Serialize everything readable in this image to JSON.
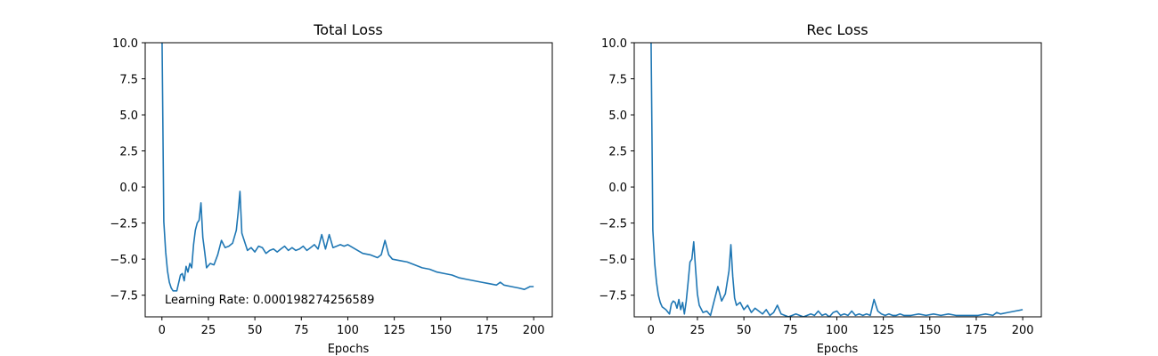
{
  "chart_data": [
    {
      "type": "line",
      "title": "Total Loss",
      "xlabel": "Epochs",
      "ylabel": "",
      "xlim": [
        -9,
        210
      ],
      "ylim": [
        -9,
        10
      ],
      "xticks": [
        "0",
        "25",
        "50",
        "75",
        "100",
        "125",
        "150",
        "175",
        "200"
      ],
      "yticks": [
        "-7.5",
        "-5.0",
        "-2.5",
        "0.0",
        "2.5",
        "5.0",
        "7.5",
        "10.0"
      ],
      "grid": false,
      "line_color": "#1f77b4",
      "annotation": "Learning Rate: 0.000198274256589",
      "series": [
        {
          "x": [
            0,
            1,
            2,
            3,
            4,
            5,
            6,
            8,
            10,
            11,
            12,
            13,
            14,
            15,
            16,
            17,
            18,
            19,
            20,
            21,
            22,
            23,
            24,
            26,
            28,
            30,
            32,
            34,
            36,
            38,
            40,
            41,
            42,
            43,
            44,
            46,
            48,
            50,
            52,
            54,
            56,
            58,
            60,
            62,
            64,
            66,
            68,
            70,
            72,
            74,
            76,
            78,
            80,
            82,
            84,
            86,
            88,
            90,
            92,
            94,
            96,
            98,
            100,
            104,
            108,
            112,
            116,
            118,
            120,
            122,
            124,
            128,
            132,
            136,
            140,
            144,
            148,
            152,
            156,
            160,
            164,
            168,
            172,
            176,
            180,
            182,
            184,
            188,
            192,
            195,
            198,
            200
          ],
          "y": [
            11,
            -2.4,
            -4.5,
            -5.8,
            -6.6,
            -7.0,
            -7.2,
            -7.2,
            -6.1,
            -6.0,
            -6.5,
            -5.5,
            -5.9,
            -5.3,
            -5.6,
            -4.0,
            -3.0,
            -2.5,
            -2.3,
            -1.1,
            -3.5,
            -4.5,
            -5.6,
            -5.3,
            -5.4,
            -4.7,
            -3.7,
            -4.2,
            -4.1,
            -3.9,
            -3.0,
            -1.8,
            -0.3,
            -3.2,
            -3.6,
            -4.4,
            -4.2,
            -4.5,
            -4.1,
            -4.2,
            -4.6,
            -4.4,
            -4.3,
            -4.5,
            -4.3,
            -4.1,
            -4.4,
            -4.2,
            -4.4,
            -4.3,
            -4.1,
            -4.4,
            -4.2,
            -4.0,
            -4.3,
            -3.3,
            -4.3,
            -3.3,
            -4.2,
            -4.1,
            -4.0,
            -4.1,
            -4.0,
            -4.3,
            -4.6,
            -4.7,
            -4.9,
            -4.7,
            -3.7,
            -4.7,
            -5.0,
            -5.1,
            -5.2,
            -5.4,
            -5.6,
            -5.7,
            -5.9,
            -6.0,
            -6.1,
            -6.3,
            -6.4,
            -6.5,
            -6.6,
            -6.7,
            -6.8,
            -6.6,
            -6.8,
            -6.9,
            -7.0,
            -7.1,
            -6.9,
            -6.9
          ]
        }
      ]
    },
    {
      "type": "line",
      "title": "Rec Loss",
      "xlabel": "Epochs",
      "ylabel": "",
      "xlim": [
        -9,
        210
      ],
      "ylim": [
        -9,
        10
      ],
      "xticks": [
        "0",
        "25",
        "50",
        "75",
        "100",
        "125",
        "150",
        "175",
        "200"
      ],
      "yticks": [
        "-7.5",
        "-5.0",
        "-2.5",
        "0.0",
        "2.5",
        "5.0",
        "7.5",
        "10.0"
      ],
      "grid": false,
      "line_color": "#1f77b4",
      "series": [
        {
          "x": [
            0,
            1,
            2,
            3,
            4,
            5,
            6,
            8,
            10,
            11,
            12,
            13,
            14,
            15,
            16,
            17,
            18,
            19,
            20,
            21,
            22,
            23,
            24,
            25,
            26,
            28,
            30,
            32,
            34,
            36,
            38,
            40,
            42,
            43,
            44,
            45,
            46,
            48,
            50,
            52,
            54,
            56,
            58,
            60,
            62,
            64,
            66,
            68,
            70,
            72,
            74,
            76,
            78,
            80,
            82,
            84,
            86,
            88,
            90,
            92,
            94,
            96,
            98,
            100,
            102,
            104,
            106,
            108,
            110,
            112,
            114,
            116,
            118,
            120,
            122,
            124,
            126,
            128,
            130,
            132,
            134,
            136,
            138,
            140,
            144,
            148,
            152,
            156,
            160,
            164,
            168,
            172,
            176,
            180,
            184,
            186,
            188,
            192,
            196,
            200
          ],
          "y": [
            11,
            -3,
            -5.3,
            -6.6,
            -7.5,
            -8.0,
            -8.3,
            -8.5,
            -8.8,
            -8.1,
            -7.9,
            -8.0,
            -8.4,
            -7.8,
            -8.5,
            -8.0,
            -8.8,
            -7.9,
            -6.6,
            -5.2,
            -5.0,
            -3.8,
            -5.7,
            -7.4,
            -8.2,
            -8.7,
            -8.6,
            -8.9,
            -7.9,
            -6.9,
            -7.9,
            -7.4,
            -5.8,
            -4.0,
            -6.2,
            -7.7,
            -8.2,
            -8.0,
            -8.5,
            -8.2,
            -8.7,
            -8.4,
            -8.6,
            -8.8,
            -8.5,
            -8.9,
            -8.7,
            -8.2,
            -8.8,
            -8.9,
            -9.0,
            -8.9,
            -8.8,
            -8.9,
            -9.0,
            -8.9,
            -8.8,
            -8.9,
            -8.6,
            -8.9,
            -8.8,
            -9.0,
            -8.7,
            -8.6,
            -8.9,
            -8.8,
            -8.9,
            -8.6,
            -8.9,
            -8.8,
            -8.9,
            -8.8,
            -8.9,
            -7.8,
            -8.6,
            -8.8,
            -8.9,
            -8.8,
            -8.9,
            -8.9,
            -8.8,
            -8.9,
            -8.9,
            -8.9,
            -8.8,
            -8.9,
            -8.8,
            -8.9,
            -8.8,
            -8.9,
            -8.9,
            -8.9,
            -8.9,
            -8.8,
            -8.9,
            -8.7,
            -8.8,
            -8.7,
            -8.6,
            -8.5
          ]
        }
      ]
    }
  ]
}
